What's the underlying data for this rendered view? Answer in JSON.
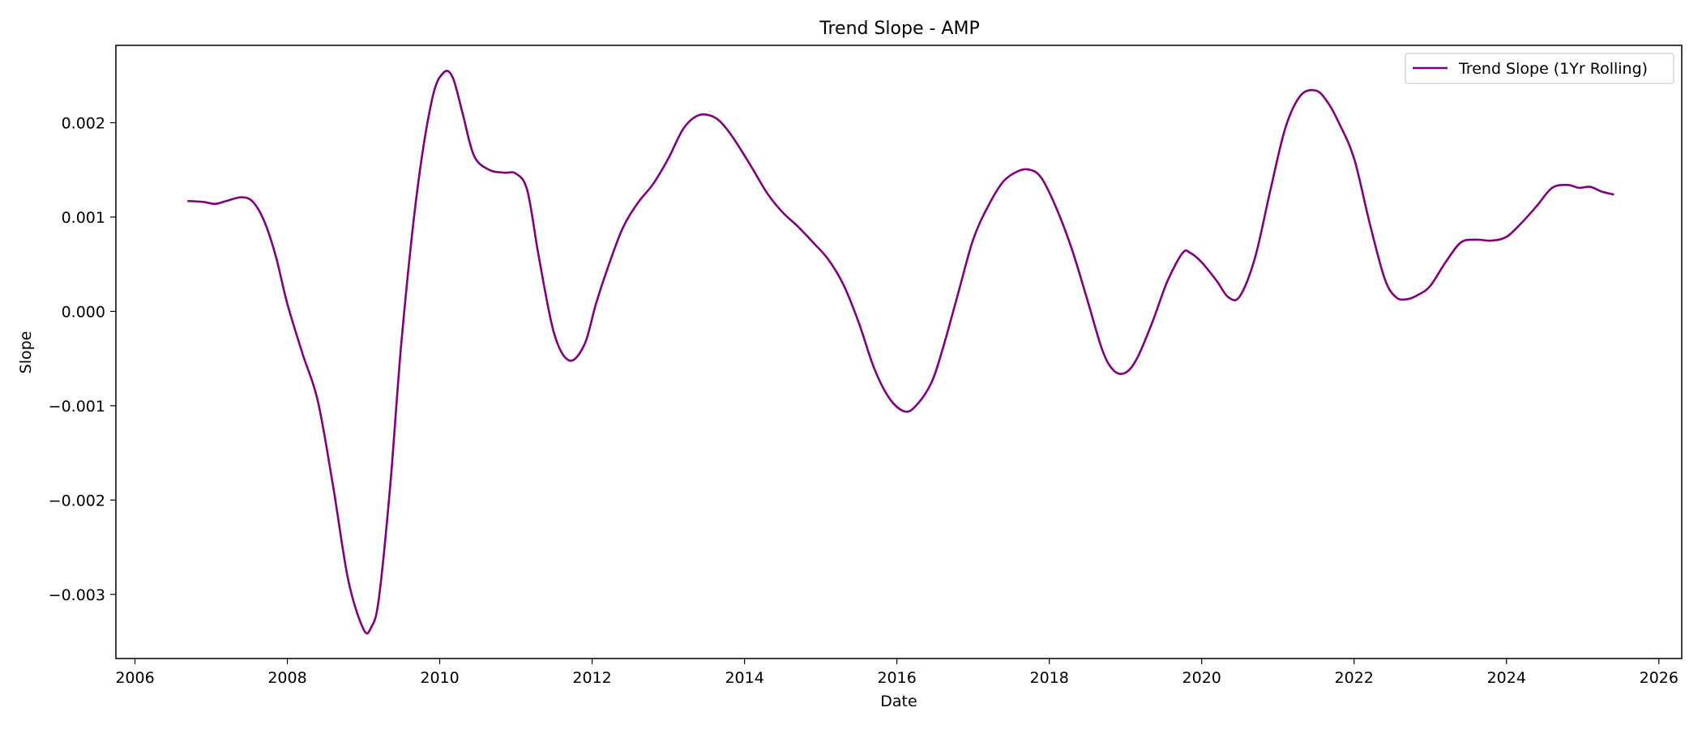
{
  "chart_data": {
    "type": "line",
    "title": "Trend Slope - AMP",
    "xlabel": "Date",
    "ylabel": "Slope",
    "xlim": [
      2005.75,
      2026.3
    ],
    "ylim": [
      -0.00368,
      0.00282
    ],
    "x_ticks": [
      2006,
      2008,
      2010,
      2012,
      2014,
      2016,
      2018,
      2020,
      2022,
      2024,
      2026
    ],
    "x_tick_labels": [
      "2006",
      "2008",
      "2010",
      "2012",
      "2014",
      "2016",
      "2018",
      "2020",
      "2022",
      "2024",
      "2026"
    ],
    "y_ticks": [
      -0.003,
      -0.002,
      -0.001,
      0.0,
      0.001,
      0.002
    ],
    "y_tick_labels": [
      "−0.003",
      "−0.002",
      "−0.001",
      "0.000",
      "0.001",
      "0.002"
    ],
    "grid": false,
    "legend_position": "top-right",
    "series": [
      {
        "name": "Trend Slope (1Yr Rolling)",
        "color": "#800080",
        "x": [
          2006.7,
          2006.9,
          2007.05,
          2007.2,
          2007.4,
          2007.55,
          2007.7,
          2007.85,
          2008.0,
          2008.2,
          2008.4,
          2008.6,
          2008.8,
          2009.0,
          2009.1,
          2009.2,
          2009.35,
          2009.5,
          2009.7,
          2009.9,
          2010.05,
          2010.17,
          2010.3,
          2010.45,
          2010.65,
          2010.85,
          2011.0,
          2011.15,
          2011.3,
          2011.5,
          2011.7,
          2011.9,
          2012.05,
          2012.2,
          2012.4,
          2012.6,
          2012.8,
          2013.0,
          2013.2,
          2013.4,
          2013.6,
          2013.75,
          2013.9,
          2014.1,
          2014.3,
          2014.5,
          2014.7,
          2014.9,
          2015.1,
          2015.3,
          2015.5,
          2015.7,
          2015.9,
          2016.1,
          2016.25,
          2016.45,
          2016.6,
          2016.8,
          2017.0,
          2017.2,
          2017.4,
          2017.6,
          2017.75,
          2017.9,
          2018.1,
          2018.3,
          2018.5,
          2018.7,
          2018.85,
          2019.0,
          2019.15,
          2019.35,
          2019.55,
          2019.75,
          2019.85,
          2020.0,
          2020.2,
          2020.35,
          2020.5,
          2020.7,
          2020.9,
          2021.1,
          2021.3,
          2021.5,
          2021.65,
          2021.8,
          2022.0,
          2022.2,
          2022.4,
          2022.55,
          2022.7,
          2022.85,
          2023.0,
          2023.2,
          2023.4,
          2023.6,
          2023.8,
          2024.0,
          2024.2,
          2024.4,
          2024.6,
          2024.8,
          2024.95,
          2025.1,
          2025.25,
          2025.4
        ],
        "y": [
          0.00117,
          0.00116,
          0.00114,
          0.00117,
          0.00121,
          0.00116,
          0.00095,
          0.00058,
          8e-05,
          -0.00045,
          -0.00095,
          -0.00185,
          -0.00285,
          -0.00337,
          -0.00335,
          -0.00305,
          -0.00185,
          -0.0003,
          0.00125,
          0.00225,
          0.00253,
          0.00248,
          0.0021,
          0.00165,
          0.0015,
          0.00147,
          0.00146,
          0.00128,
          0.00058,
          -0.00023,
          -0.00052,
          -0.00035,
          8e-05,
          0.00045,
          0.00088,
          0.00115,
          0.00135,
          0.00162,
          0.00194,
          0.00208,
          0.00206,
          0.00195,
          0.00178,
          0.00152,
          0.00125,
          0.00105,
          0.0009,
          0.00073,
          0.00055,
          0.00028,
          -0.00012,
          -0.0006,
          -0.00092,
          -0.00106,
          -0.001,
          -0.00076,
          -0.0004,
          0.00018,
          0.00076,
          0.00112,
          0.00138,
          0.00149,
          0.0015,
          0.00141,
          0.00108,
          0.00065,
          0.00012,
          -0.00042,
          -0.00063,
          -0.00065,
          -0.0005,
          -0.00012,
          0.00032,
          0.00062,
          0.00062,
          0.00052,
          0.00032,
          0.00015,
          0.00016,
          0.00057,
          0.00128,
          0.00195,
          0.00229,
          0.00234,
          0.00222,
          0.002,
          0.00162,
          0.00095,
          0.00035,
          0.00015,
          0.00013,
          0.00018,
          0.00027,
          0.00052,
          0.00073,
          0.00076,
          0.00075,
          0.00079,
          0.00094,
          0.00112,
          0.00131,
          0.00134,
          0.00131,
          0.00132,
          0.00127,
          0.00124
        ]
      }
    ]
  }
}
